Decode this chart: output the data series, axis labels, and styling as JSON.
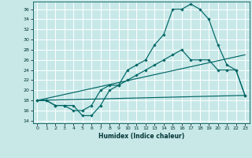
{
  "xlabel": "Humidex (Indice chaleur)",
  "bg_color": "#c8e8e8",
  "line_color": "#006666",
  "grid_color": "#ffffff",
  "xlim": [
    -0.5,
    23.5
  ],
  "ylim": [
    13.5,
    37.5
  ],
  "xticks": [
    0,
    1,
    2,
    3,
    4,
    5,
    6,
    7,
    8,
    9,
    10,
    11,
    12,
    13,
    14,
    15,
    16,
    17,
    18,
    19,
    20,
    21,
    22,
    23
  ],
  "yticks": [
    14,
    16,
    18,
    20,
    22,
    24,
    26,
    28,
    30,
    32,
    34,
    36
  ],
  "line1_x": [
    0,
    1,
    2,
    3,
    4,
    5,
    6,
    7,
    8,
    9,
    10,
    11,
    12,
    13,
    14,
    15,
    16,
    17,
    18,
    19,
    20,
    21,
    22,
    23
  ],
  "line1_y": [
    18,
    18,
    17,
    17,
    17,
    15,
    15,
    17,
    20,
    21,
    24,
    25,
    26,
    29,
    31,
    36,
    36,
    37,
    36,
    34,
    29,
    25,
    24,
    19
  ],
  "line2_x": [
    0,
    1,
    2,
    3,
    4,
    5,
    6,
    7,
    8,
    9,
    10,
    11,
    12,
    13,
    14,
    15,
    16,
    17,
    18,
    19,
    20,
    21,
    22,
    23
  ],
  "line2_y": [
    18,
    18,
    17,
    17,
    16,
    16,
    17,
    20,
    21,
    21,
    22,
    23,
    24,
    25,
    26,
    27,
    28,
    26,
    26,
    26,
    24,
    24,
    24,
    19
  ],
  "line3_x": [
    0,
    23
  ],
  "line3_y": [
    18,
    19
  ],
  "line4_x": [
    0,
    23
  ],
  "line4_y": [
    18,
    27
  ]
}
